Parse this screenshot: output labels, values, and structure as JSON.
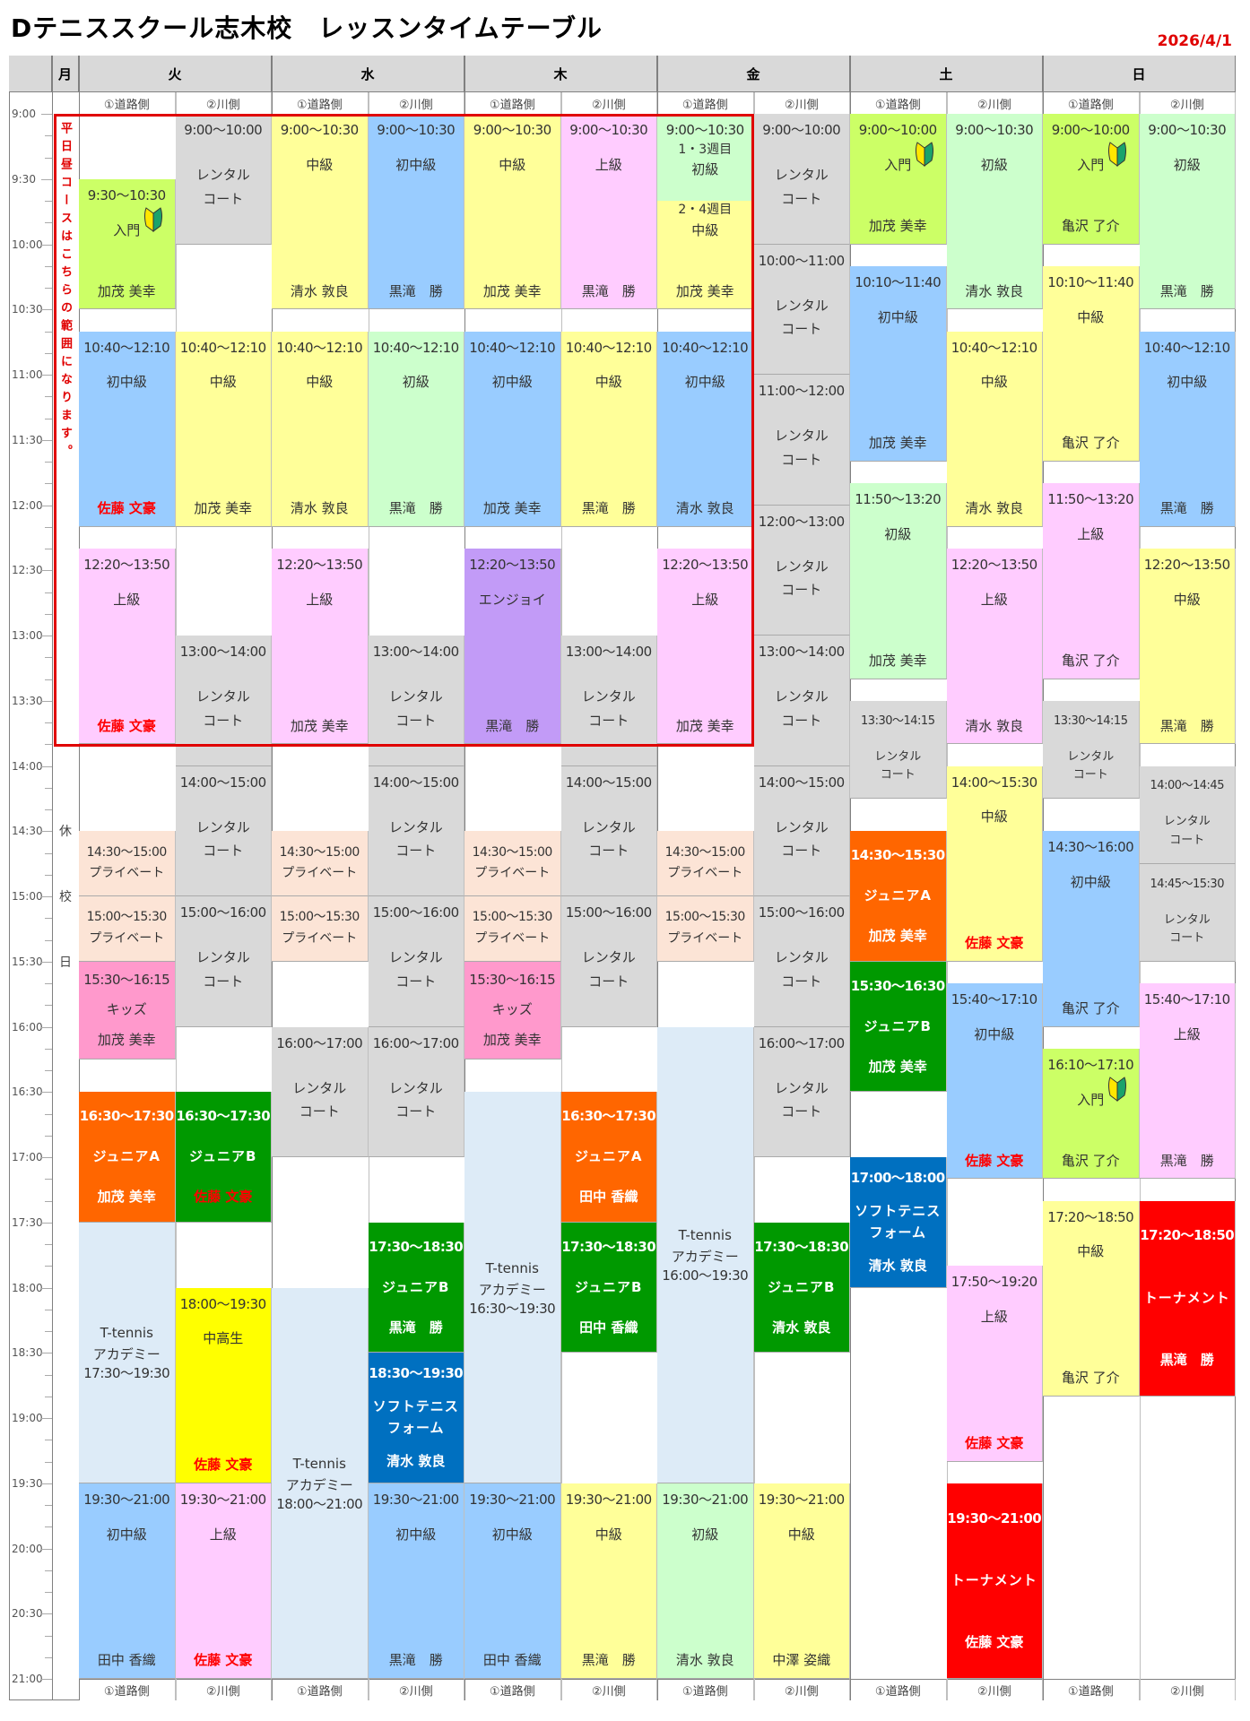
{
  "header": {
    "title": "Dテニススクール志木校　レッスンタイムテーブル",
    "date": "2026/4/1",
    "monday": "月",
    "days": [
      "火",
      "水",
      "木",
      "金",
      "土",
      "日"
    ],
    "courts": [
      "①道路側",
      "②川側"
    ]
  },
  "monday_note": "休校日",
  "weekday_note": "平日昼コースはこちらの範囲になります。",
  "times": [
    "9:00",
    "9:30",
    "10:00",
    "10:30",
    "11:00",
    "11:30",
    "12:00",
    "12:30",
    "13:00",
    "13:30",
    "14:00",
    "14:30",
    "15:00",
    "15:30",
    "16:00",
    "16:30",
    "17:00",
    "17:30",
    "18:00",
    "18:30",
    "19:00",
    "19:30",
    "20:00",
    "20:30",
    "21:00"
  ],
  "colors": {
    "yg": "#ccff66",
    "blue": "#99ccff",
    "pink": "#ffccff",
    "yellow": "#ffff99",
    "lg": "#ccffcc",
    "gray": "#d9d9d9",
    "peach": "#fce4d6",
    "kids": "#ff99cc",
    "orange": "#ff6600",
    "green": "#009900",
    "dblue": "#0070c0",
    "red": "#ff0000",
    "purple": "#c29bf7",
    "lb": "#ddebf7",
    "byellow": "#ffff00",
    "highlight": "#e00000"
  },
  "split_cell": {
    "col": 6,
    "time": "9:00〜10:30",
    "top_week": "1・3週目",
    "top_level": "初級",
    "top_bg": "lg",
    "bottom_week": "2・4週目",
    "bottom_level": "中級",
    "bottom_bg": "yellow",
    "name": "加茂 美幸",
    "split_at": "9:40"
  },
  "cells": [
    {
      "c": 0,
      "t": "9:30〜10:30",
      "l": "入門",
      "n": "加茂 美幸",
      "bg": "yg",
      "k": "L",
      "icon": "beginner-mark"
    },
    {
      "c": 0,
      "t": "10:40〜12:10",
      "l": "初中級",
      "n": "佐藤 文豪",
      "bg": "blue",
      "k": "L",
      "nr": true
    },
    {
      "c": 0,
      "t": "12:20〜13:50",
      "l": "上級",
      "n": "佐藤 文豪",
      "bg": "pink",
      "k": "L",
      "nr": true
    },
    {
      "c": 0,
      "t": "14:30〜15:00",
      "l": "プライベート",
      "bg": "peach",
      "k": "P"
    },
    {
      "c": 0,
      "t": "15:00〜15:30",
      "l": "プライベート",
      "bg": "peach",
      "k": "P"
    },
    {
      "c": 0,
      "t": "15:30〜16:15",
      "l": "キッズ",
      "n": "加茂 美幸",
      "bg": "kids",
      "k": "K"
    },
    {
      "c": 0,
      "t": "16:30〜17:30",
      "l": "ジュニアA",
      "n": "加茂 美幸",
      "bg": "orange",
      "k": "J"
    },
    {
      "c": 0,
      "t": "17:30〜19:30",
      "l": "T-tennis\nアカデミー",
      "bg": "lb",
      "k": "A"
    },
    {
      "c": 0,
      "t": "19:30〜21:00",
      "l": "初中級",
      "n": "田中 香織",
      "bg": "blue",
      "k": "L"
    },
    {
      "c": 1,
      "t": "9:00〜10:00",
      "l": "レンタル\nコート",
      "bg": "gray",
      "k": "R"
    },
    {
      "c": 1,
      "t": "10:40〜12:10",
      "l": "中級",
      "n": "加茂 美幸",
      "bg": "yellow",
      "k": "L"
    },
    {
      "c": 1,
      "t": "13:00〜14:00",
      "l": "レンタル\nコート",
      "bg": "gray",
      "k": "R"
    },
    {
      "c": 1,
      "t": "14:00〜15:00",
      "l": "レンタル\nコート",
      "bg": "gray",
      "k": "R"
    },
    {
      "c": 1,
      "t": "15:00〜16:00",
      "l": "レンタル\nコート",
      "bg": "gray",
      "k": "R"
    },
    {
      "c": 1,
      "t": "16:30〜17:30",
      "l": "ジュニアB",
      "n": "佐藤 文豪",
      "bg": "green",
      "k": "J",
      "nr": true
    },
    {
      "c": 1,
      "t": "18:00〜19:30",
      "l": "中高生",
      "n": "佐藤 文豪",
      "bg": "byellow",
      "k": "L",
      "nr": true
    },
    {
      "c": 1,
      "t": "19:30〜21:00",
      "l": "上級",
      "n": "佐藤 文豪",
      "bg": "pink",
      "k": "L",
      "nr": true
    },
    {
      "c": 2,
      "t": "9:00〜10:30",
      "l": "中級",
      "n": "清水 敦良",
      "bg": "yellow",
      "k": "L"
    },
    {
      "c": 2,
      "t": "10:40〜12:10",
      "l": "中級",
      "n": "清水 敦良",
      "bg": "yellow",
      "k": "L"
    },
    {
      "c": 2,
      "t": "12:20〜13:50",
      "l": "上級",
      "n": "加茂 美幸",
      "bg": "pink",
      "k": "L"
    },
    {
      "c": 2,
      "t": "14:30〜15:00",
      "l": "プライベート",
      "bg": "peach",
      "k": "P"
    },
    {
      "c": 2,
      "t": "15:00〜15:30",
      "l": "プライベート",
      "bg": "peach",
      "k": "P"
    },
    {
      "c": 2,
      "t": "16:00〜17:00",
      "l": "レンタル\nコート",
      "bg": "gray",
      "k": "R"
    },
    {
      "c": 2,
      "t": "18:00〜21:00",
      "l": "T-tennis\nアカデミー",
      "bg": "lb",
      "k": "A"
    },
    {
      "c": 3,
      "t": "9:00〜10:30",
      "l": "初中級",
      "n": "黒滝　勝",
      "bg": "blue",
      "k": "L"
    },
    {
      "c": 3,
      "t": "10:40〜12:10",
      "l": "初級",
      "n": "黒滝　勝",
      "bg": "lg",
      "k": "L"
    },
    {
      "c": 3,
      "t": "13:00〜14:00",
      "l": "レンタル\nコート",
      "bg": "gray",
      "k": "R"
    },
    {
      "c": 3,
      "t": "14:00〜15:00",
      "l": "レンタル\nコート",
      "bg": "gray",
      "k": "R"
    },
    {
      "c": 3,
      "t": "15:00〜16:00",
      "l": "レンタル\nコート",
      "bg": "gray",
      "k": "R"
    },
    {
      "c": 3,
      "t": "16:00〜17:00",
      "l": "レンタル\nコート",
      "bg": "gray",
      "k": "R"
    },
    {
      "c": 3,
      "t": "17:30〜18:30",
      "l": "ジュニアB",
      "n": "黒滝　勝",
      "bg": "green",
      "k": "J"
    },
    {
      "c": 3,
      "t": "18:30〜19:30",
      "l": "ソフトテニス\nフォーム",
      "n": "清水 敦良",
      "bg": "dblue",
      "k": "J"
    },
    {
      "c": 3,
      "t": "19:30〜21:00",
      "l": "初中級",
      "n": "黒滝　勝",
      "bg": "blue",
      "k": "L"
    },
    {
      "c": 4,
      "t": "9:00〜10:30",
      "l": "中級",
      "n": "加茂 美幸",
      "bg": "yellow",
      "k": "L"
    },
    {
      "c": 4,
      "t": "10:40〜12:10",
      "l": "初中級",
      "n": "加茂 美幸",
      "bg": "blue",
      "k": "L"
    },
    {
      "c": 4,
      "t": "12:20〜13:50",
      "l": "エンジョイ",
      "n": "黒滝　勝",
      "bg": "purple",
      "k": "L"
    },
    {
      "c": 4,
      "t": "14:30〜15:00",
      "l": "プライベート",
      "bg": "peach",
      "k": "P"
    },
    {
      "c": 4,
      "t": "15:00〜15:30",
      "l": "プライベート",
      "bg": "peach",
      "k": "P"
    },
    {
      "c": 4,
      "t": "15:30〜16:15",
      "l": "キッズ",
      "n": "加茂 美幸",
      "bg": "kids",
      "k": "K"
    },
    {
      "c": 4,
      "t": "16:30〜19:30",
      "l": "T-tennis\nアカデミー",
      "bg": "lb",
      "k": "A"
    },
    {
      "c": 4,
      "t": "19:30〜21:00",
      "l": "初中級",
      "n": "田中 香織",
      "bg": "blue",
      "k": "L"
    },
    {
      "c": 5,
      "t": "9:00〜10:30",
      "l": "上級",
      "n": "黒滝　勝",
      "bg": "pink",
      "k": "L"
    },
    {
      "c": 5,
      "t": "10:40〜12:10",
      "l": "中級",
      "n": "黒滝　勝",
      "bg": "yellow",
      "k": "L"
    },
    {
      "c": 5,
      "t": "13:00〜14:00",
      "l": "レンタル\nコート",
      "bg": "gray",
      "k": "R"
    },
    {
      "c": 5,
      "t": "14:00〜15:00",
      "l": "レンタル\nコート",
      "bg": "gray",
      "k": "R"
    },
    {
      "c": 5,
      "t": "15:00〜16:00",
      "l": "レンタル\nコート",
      "bg": "gray",
      "k": "R"
    },
    {
      "c": 5,
      "t": "16:30〜17:30",
      "l": "ジュニアA",
      "n": "田中 香織",
      "bg": "orange",
      "k": "J"
    },
    {
      "c": 5,
      "t": "17:30〜18:30",
      "l": "ジュニアB",
      "n": "田中 香織",
      "bg": "green",
      "k": "J"
    },
    {
      "c": 5,
      "t": "19:30〜21:00",
      "l": "中級",
      "n": "黒滝　勝",
      "bg": "yellow",
      "k": "L"
    },
    {
      "c": 6,
      "t": "10:40〜12:10",
      "l": "初中級",
      "n": "清水 敦良",
      "bg": "blue",
      "k": "L"
    },
    {
      "c": 6,
      "t": "12:20〜13:50",
      "l": "上級",
      "n": "加茂 美幸",
      "bg": "pink",
      "k": "L"
    },
    {
      "c": 6,
      "t": "14:30〜15:00",
      "l": "プライベート",
      "bg": "peach",
      "k": "P"
    },
    {
      "c": 6,
      "t": "15:00〜15:30",
      "l": "プライベート",
      "bg": "peach",
      "k": "P"
    },
    {
      "c": 6,
      "t": "16:00〜19:30",
      "l": "T-tennis\nアカデミー",
      "bg": "lb",
      "k": "A"
    },
    {
      "c": 6,
      "t": "19:30〜21:00",
      "l": "初級",
      "n": "清水 敦良",
      "bg": "lg",
      "k": "L"
    },
    {
      "c": 7,
      "t": "9:00〜10:00",
      "l": "レンタル\nコート",
      "bg": "gray",
      "k": "R"
    },
    {
      "c": 7,
      "t": "10:00〜11:00",
      "l": "レンタル\nコート",
      "bg": "gray",
      "k": "R"
    },
    {
      "c": 7,
      "t": "11:00〜12:00",
      "l": "レンタル\nコート",
      "bg": "gray",
      "k": "R"
    },
    {
      "c": 7,
      "t": "12:00〜13:00",
      "l": "レンタル\nコート",
      "bg": "gray",
      "k": "R"
    },
    {
      "c": 7,
      "t": "13:00〜14:00",
      "l": "レンタル\nコート",
      "bg": "gray",
      "k": "R"
    },
    {
      "c": 7,
      "t": "14:00〜15:00",
      "l": "レンタル\nコート",
      "bg": "gray",
      "k": "R"
    },
    {
      "c": 7,
      "t": "15:00〜16:00",
      "l": "レンタル\nコート",
      "bg": "gray",
      "k": "R"
    },
    {
      "c": 7,
      "t": "16:00〜17:00",
      "l": "レンタル\nコート",
      "bg": "gray",
      "k": "R"
    },
    {
      "c": 7,
      "t": "17:30〜18:30",
      "l": "ジュニアB",
      "n": "清水 敦良",
      "bg": "green",
      "k": "J"
    },
    {
      "c": 7,
      "t": "19:30〜21:00",
      "l": "中級",
      "n": "中澤 姿織",
      "bg": "yellow",
      "k": "L"
    },
    {
      "c": 8,
      "t": "9:00〜10:00",
      "l": "入門",
      "n": "加茂 美幸",
      "bg": "yg",
      "k": "L",
      "icon": "beginner-mark"
    },
    {
      "c": 8,
      "t": "10:10〜11:40",
      "l": "初中級",
      "n": "加茂 美幸",
      "bg": "blue",
      "k": "L"
    },
    {
      "c": 8,
      "t": "11:50〜13:20",
      "l": "初級",
      "n": "加茂 美幸",
      "bg": "lg",
      "k": "L"
    },
    {
      "c": 8,
      "t": "13:30〜14:15",
      "l": "レンタル\nコート",
      "bg": "gray",
      "k": "S"
    },
    {
      "c": 8,
      "t": "14:30〜15:30",
      "l": "ジュニアA",
      "n": "加茂 美幸",
      "bg": "orange",
      "k": "J"
    },
    {
      "c": 8,
      "t": "15:30〜16:30",
      "l": "ジュニアB",
      "n": "加茂 美幸",
      "bg": "green",
      "k": "J"
    },
    {
      "c": 8,
      "t": "17:00〜18:00",
      "l": "ソフトテニス\nフォーム",
      "n": "清水 敦良",
      "bg": "dblue",
      "k": "J"
    },
    {
      "c": 9,
      "t": "9:00〜10:30",
      "l": "初級",
      "n": "清水 敦良",
      "bg": "lg",
      "k": "L"
    },
    {
      "c": 9,
      "t": "10:40〜12:10",
      "l": "中級",
      "n": "清水 敦良",
      "bg": "yellow",
      "k": "L"
    },
    {
      "c": 9,
      "t": "12:20〜13:50",
      "l": "上級",
      "n": "清水 敦良",
      "bg": "pink",
      "k": "L"
    },
    {
      "c": 9,
      "t": "14:00〜15:30",
      "l": "中級",
      "n": "佐藤 文豪",
      "bg": "yellow",
      "k": "L",
      "nr": true
    },
    {
      "c": 9,
      "t": "15:40〜17:10",
      "l": "初中級",
      "n": "佐藤 文豪",
      "bg": "blue",
      "k": "L",
      "nr": true
    },
    {
      "c": 9,
      "t": "17:50〜19:20",
      "l": "上級",
      "n": "佐藤 文豪",
      "bg": "pink",
      "k": "L",
      "nr": true
    },
    {
      "c": 9,
      "t": "19:30〜21:00",
      "l": "トーナメント",
      "n": "佐藤 文豪",
      "bg": "red",
      "k": "J"
    },
    {
      "c": 10,
      "t": "9:00〜10:00",
      "l": "入門",
      "n": "亀沢 了介",
      "bg": "yg",
      "k": "L",
      "icon": "beginner-mark"
    },
    {
      "c": 10,
      "t": "10:10〜11:40",
      "l": "中級",
      "n": "亀沢 了介",
      "bg": "yellow",
      "k": "L"
    },
    {
      "c": 10,
      "t": "11:50〜13:20",
      "l": "上級",
      "n": "亀沢 了介",
      "bg": "pink",
      "k": "L"
    },
    {
      "c": 10,
      "t": "13:30〜14:15",
      "l": "レンタル\nコート",
      "bg": "gray",
      "k": "S"
    },
    {
      "c": 10,
      "t": "14:30〜16:00",
      "l": "初中級",
      "n": "亀沢 了介",
      "bg": "blue",
      "k": "L"
    },
    {
      "c": 10,
      "t": "16:10〜17:10",
      "l": "入門",
      "n": "亀沢 了介",
      "bg": "yg",
      "k": "L",
      "icon": "beginner-mark"
    },
    {
      "c": 10,
      "t": "17:20〜18:50",
      "l": "中級",
      "n": "亀沢 了介",
      "bg": "yellow",
      "k": "L"
    },
    {
      "c": 11,
      "t": "9:00〜10:30",
      "l": "初級",
      "n": "黒滝　勝",
      "bg": "lg",
      "k": "L"
    },
    {
      "c": 11,
      "t": "10:40〜12:10",
      "l": "初中級",
      "n": "黒滝　勝",
      "bg": "blue",
      "k": "L"
    },
    {
      "c": 11,
      "t": "12:20〜13:50",
      "l": "中級",
      "n": "黒滝　勝",
      "bg": "yellow",
      "k": "L"
    },
    {
      "c": 11,
      "t": "14:00〜14:45",
      "l": "レンタル\nコート",
      "bg": "gray",
      "k": "S"
    },
    {
      "c": 11,
      "t": "14:45〜15:30",
      "l": "レンタル\nコート",
      "bg": "gray",
      "k": "S"
    },
    {
      "c": 11,
      "t": "15:40〜17:10",
      "l": "上級",
      "n": "黒滝　勝",
      "bg": "pink",
      "k": "L"
    },
    {
      "c": 11,
      "t": "17:20〜18:50",
      "l": "トーナメント",
      "n": "黒滝　勝",
      "bg": "red",
      "k": "J"
    }
  ]
}
